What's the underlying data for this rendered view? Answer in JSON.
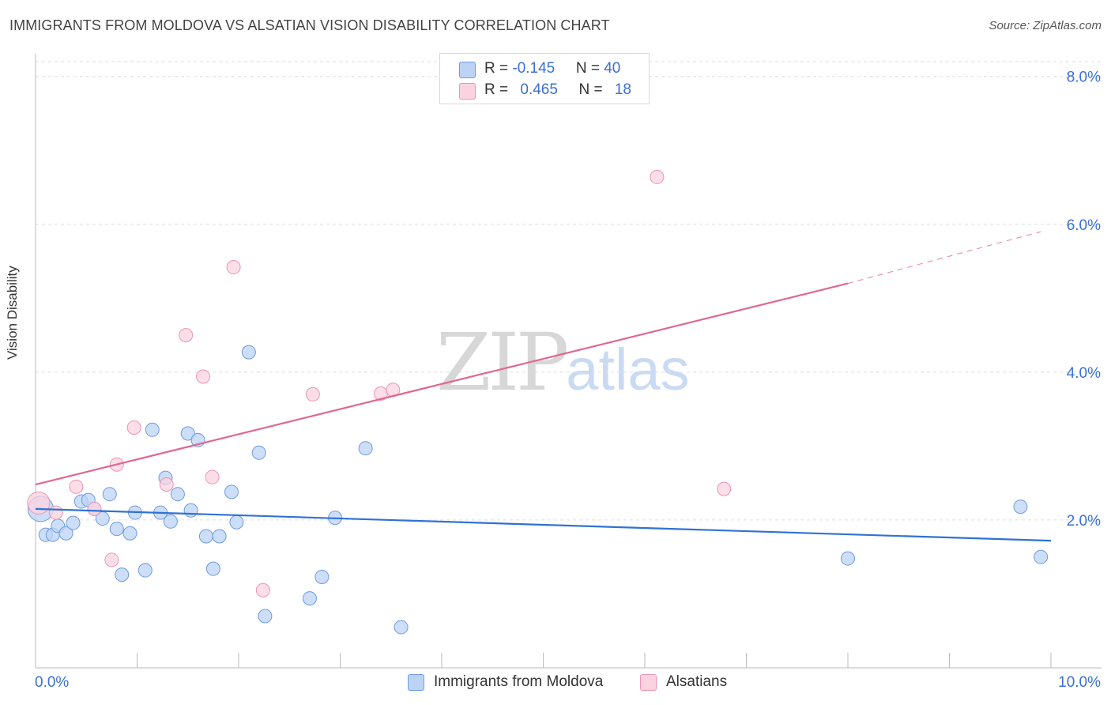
{
  "header": {
    "title": "IMMIGRANTS FROM MOLDOVA VS ALSATIAN VISION DISABILITY CORRELATION CHART",
    "source": "Source: ZipAtlas.com"
  },
  "watermark": {
    "zip": "ZIP",
    "atlas": "atlas"
  },
  "legend": {
    "rows": [
      {
        "r_label": "R = ",
        "r_value": "-0.145",
        "n_label": "N = ",
        "n_value": "40",
        "color": "#a9c5f1",
        "border": "#6f9be0"
      },
      {
        "r_label": "R = ",
        "r_value": "0.465",
        "n_label": "N = ",
        "n_value": "18",
        "color": "#f9c5d5",
        "border": "#ee94b0"
      }
    ]
  },
  "bottom_legend": [
    {
      "label": "Immigrants from Moldova",
      "color": "#bcd3f6",
      "border": "#6f9be0"
    },
    {
      "label": "Alsatians",
      "color": "#fbd3e0",
      "border": "#ee94b0"
    }
  ],
  "chart_data": {
    "type": "scatter",
    "title": "IMMIGRANTS FROM MOLDOVA VS ALSATIAN VISION DISABILITY CORRELATION CHART",
    "xlabel": "",
    "ylabel": "Vision Disability",
    "xlim": [
      0,
      10
    ],
    "ylim": [
      0,
      8.2
    ],
    "x_tick_labels": [
      "0.0%",
      "10.0%"
    ],
    "y_ticks": [
      2,
      4,
      6,
      8
    ],
    "y_tick_labels": [
      "2.0%",
      "4.0%",
      "6.0%",
      "8.0%"
    ],
    "grid": true,
    "series": [
      {
        "name": "Immigrants from Moldova",
        "color": "#6f9be0",
        "fill": "#bcd3f6",
        "points": [
          [
            0.05,
            2.15
          ],
          [
            0.1,
            1.8
          ],
          [
            0.17,
            1.8
          ],
          [
            0.22,
            1.92
          ],
          [
            0.3,
            1.82
          ],
          [
            0.37,
            1.96
          ],
          [
            0.45,
            2.25
          ],
          [
            0.52,
            2.27
          ],
          [
            0.58,
            2.15
          ],
          [
            0.66,
            2.02
          ],
          [
            0.73,
            2.35
          ],
          [
            0.8,
            1.88
          ],
          [
            0.85,
            1.26
          ],
          [
            0.93,
            1.82
          ],
          [
            0.98,
            2.1
          ],
          [
            1.08,
            1.32
          ],
          [
            1.15,
            3.22
          ],
          [
            1.23,
            2.1
          ],
          [
            1.28,
            2.57
          ],
          [
            1.33,
            1.98
          ],
          [
            1.4,
            2.35
          ],
          [
            1.5,
            3.17
          ],
          [
            1.53,
            2.13
          ],
          [
            1.6,
            3.08
          ],
          [
            1.68,
            1.78
          ],
          [
            1.75,
            1.34
          ],
          [
            1.81,
            1.78
          ],
          [
            1.93,
            2.38
          ],
          [
            1.98,
            1.97
          ],
          [
            2.1,
            4.27
          ],
          [
            2.2,
            2.91
          ],
          [
            2.26,
            0.7
          ],
          [
            2.7,
            0.94
          ],
          [
            2.82,
            1.23
          ],
          [
            2.95,
            2.03
          ],
          [
            3.25,
            2.97
          ],
          [
            3.6,
            0.55
          ],
          [
            8.0,
            1.48
          ],
          [
            9.7,
            2.18
          ],
          [
            9.9,
            1.5
          ]
        ]
      },
      {
        "name": "Alsatians",
        "color": "#ee94b0",
        "fill": "#fbd3e0",
        "points": [
          [
            0.03,
            2.23
          ],
          [
            0.2,
            2.1
          ],
          [
            0.4,
            2.45
          ],
          [
            0.58,
            2.15
          ],
          [
            0.75,
            1.46
          ],
          [
            0.8,
            2.75
          ],
          [
            0.97,
            3.25
          ],
          [
            1.29,
            2.48
          ],
          [
            1.48,
            4.5
          ],
          [
            1.65,
            3.94
          ],
          [
            1.74,
            2.58
          ],
          [
            1.95,
            5.42
          ],
          [
            2.24,
            1.05
          ],
          [
            2.73,
            3.7
          ],
          [
            3.4,
            3.71
          ],
          [
            3.52,
            3.76
          ],
          [
            6.78,
            2.42
          ],
          [
            6.12,
            6.64
          ]
        ]
      }
    ],
    "trend_lines": [
      {
        "series": "Immigrants from Moldova",
        "color": "#2f72d4",
        "x": [
          0,
          10
        ],
        "y": [
          2.15,
          1.72
        ]
      },
      {
        "series": "Alsatians",
        "color": "#e0688e",
        "x": [
          0,
          8.0
        ],
        "y": [
          2.48,
          5.2
        ],
        "dashed_extension_to": [
          9.9,
          5.9
        ]
      }
    ]
  }
}
